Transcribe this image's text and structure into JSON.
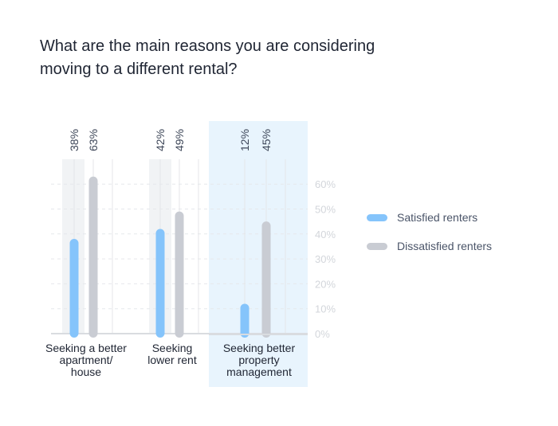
{
  "chart_data": {
    "type": "bar",
    "title": "What are the main reasons you are considering moving to a different rental?",
    "categories": [
      "Seeking a better apartment/ house",
      "Seeking lower rent",
      "Seeking better property management"
    ],
    "category_lines": [
      [
        "Seeking a better",
        "apartment/",
        "house"
      ],
      [
        "Seeking",
        "lower rent"
      ],
      [
        "Seeking better",
        "property",
        "management"
      ]
    ],
    "series": [
      {
        "name": "Satisfied renters",
        "values": [
          38,
          42,
          12
        ],
        "labels": [
          "38%",
          "42%",
          "12%"
        ],
        "color": "#85c4fb"
      },
      {
        "name": "Dissatisfied renters",
        "values": [
          63,
          49,
          45
        ],
        "labels": [
          "63%",
          "49%",
          "45%"
        ],
        "color": "#c9ccd3"
      }
    ],
    "yticks": [
      "0%",
      "10%",
      "20%",
      "30%",
      "40%",
      "50%",
      "60%"
    ],
    "ylim": [
      0,
      60
    ],
    "highlighted_category": 2,
    "grid": true,
    "legend_position": "right",
    "colors": {
      "highlight": "#e8f4fd",
      "shade": "#f1f3f5",
      "text": "#1f2533",
      "tick": "#d3d6db"
    }
  }
}
